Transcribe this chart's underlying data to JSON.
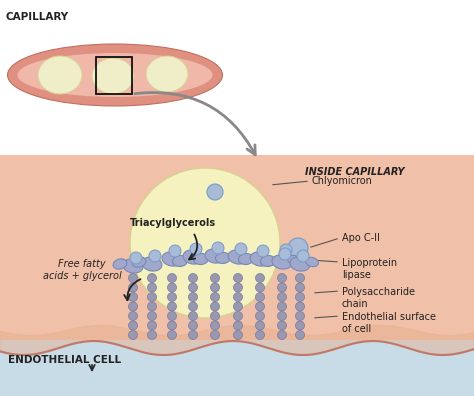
{
  "bg_color": "#ffffff",
  "capillary_outer": "#e09080",
  "capillary_inner": "#f0b8a8",
  "cell_yellow_light": "#f8f5d0",
  "cell_yellow": "#f5f2c0",
  "endothelial_bg": "#f0c0a8",
  "water_color": "#c8dce8",
  "gray_arrow": "#888888",
  "blue_med": "#7898c8",
  "blue_light": "#a8bcd8",
  "blue_dark": "#5878a8",
  "lipase_fill": "#a0a8cc",
  "lipase_edge": "#7888b8",
  "chain_fill": "#9898b0",
  "chain_edge": "#7878a0",
  "text_color": "#222222",
  "line_color": "#555555",
  "title_capillary": "CAPILLARY",
  "title_inside": "INSIDE CAPILLARY",
  "title_endothelial": "ENDOTHELIAL CELL",
  "label_chylomicron": "Chlyomicron",
  "label_triacyl": "Triacylglycerols",
  "label_apo": "Apo C-II",
  "label_lipase": "Lipoprotein\nlipase",
  "label_poly": "Polysaccharide\nchain",
  "label_endo_surf": "Endothelial surface\nof cell",
  "label_fatty": "Free fatty\nacids + glycerol"
}
